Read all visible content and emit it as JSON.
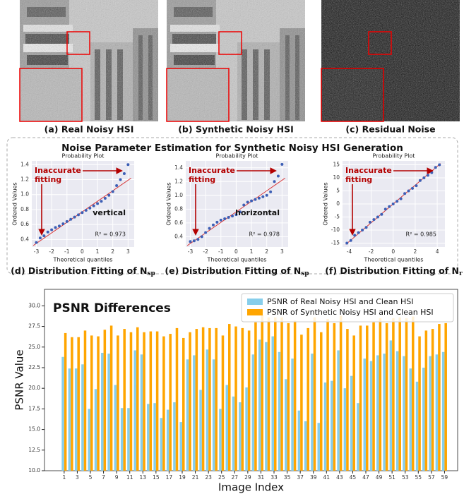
{
  "images": [
    {
      "caption": "(a) Real Noisy HSI"
    },
    {
      "caption": "(b) Synthetic Noisy HSI"
    },
    {
      "caption": "(c) Residual Noise"
    }
  ],
  "panel_title": "Noise Parameter Estimation for Synthetic Noisy HSI Generation",
  "chart_data": [
    {
      "type": "qq",
      "title": "Probability Plot",
      "x_label": "Theoretical quantiles",
      "y_label": "Ordered Values",
      "caption": "(d) Distribution Fitting of N",
      "caption_sub": "sp",
      "annotation": [
        "Inaccurate",
        "fitting"
      ],
      "orientation": "vertical",
      "r2": "R² = 0.973",
      "x": [
        -3,
        -2.75,
        -2.5,
        -2.25,
        -2,
        -1.75,
        -1.5,
        -1.25,
        -1,
        -0.75,
        -0.5,
        -0.25,
        0,
        0.25,
        0.5,
        0.75,
        1,
        1.25,
        1.5,
        1.75,
        2,
        2.25,
        2.5,
        2.75,
        3
      ],
      "values": [
        0.36,
        0.42,
        0.45,
        0.5,
        0.53,
        0.56,
        0.58,
        0.61,
        0.64,
        0.67,
        0.7,
        0.73,
        0.76,
        0.79,
        0.82,
        0.85,
        0.88,
        0.91,
        0.95,
        0.99,
        1.04,
        1.12,
        1.2,
        1.28,
        1.4
      ],
      "fit_line": {
        "x": [
          -3.2,
          3.2
        ],
        "y": [
          0.32,
          1.22
        ]
      },
      "color": "#3d5fb5",
      "line_color": "#d62728",
      "xlim": [
        -3.3,
        3.4
      ],
      "ylim": [
        0.3,
        1.45
      ],
      "xticks": [
        -3,
        -2,
        -1,
        0,
        1,
        2,
        3
      ],
      "yticks": [
        {
          "value": 0.4,
          "label": "0.4"
        },
        {
          "value": 0.6,
          "label": "0.6"
        },
        {
          "value": 0.8,
          "label": "0.8"
        },
        {
          "value": 1,
          "label": "1.0"
        },
        {
          "value": 1.2,
          "label": "1.2"
        },
        {
          "value": 1.4,
          "label": "1.4"
        }
      ],
      "grid": true
    },
    {
      "type": "qq",
      "title": "Probability Plot",
      "x_label": "Theoretical quantiles",
      "y_label": "Ordered Values",
      "caption": "(e) Distribution Fitting of N",
      "caption_sub": "sp",
      "annotation": [
        "Inaccurate",
        "fitting"
      ],
      "orientation": "horizontal",
      "r2": "R² = 0.978",
      "x": [
        -3,
        -2.75,
        -2.5,
        -2.25,
        -2,
        -1.75,
        -1.5,
        -1.25,
        -1,
        -0.75,
        -0.5,
        -0.25,
        0,
        0.25,
        0.5,
        0.75,
        1,
        1.25,
        1.5,
        1.75,
        2,
        2.25,
        2.5,
        2.75,
        3
      ],
      "values": [
        0.33,
        0.34,
        0.36,
        0.4,
        0.46,
        0.52,
        0.57,
        0.61,
        0.64,
        0.66,
        0.68,
        0.7,
        0.72,
        0.76,
        0.86,
        0.9,
        0.92,
        0.94,
        0.96,
        0.98,
        1.0,
        1.05,
        1.2,
        1.28,
        1.45
      ],
      "fit_line": {
        "x": [
          -3.2,
          3.2
        ],
        "y": [
          0.27,
          1.25
        ]
      },
      "color": "#3d5fb5",
      "line_color": "#d62728",
      "xlim": [
        -3.3,
        3.4
      ],
      "ylim": [
        0.25,
        1.5
      ],
      "xticks": [
        -3,
        -2,
        -1,
        0,
        1,
        2,
        3
      ],
      "yticks": [
        {
          "value": 0.4,
          "label": "0.4"
        },
        {
          "value": 0.6,
          "label": "0.6"
        },
        {
          "value": 0.8,
          "label": "0.8"
        },
        {
          "value": 1,
          "label": "1.0"
        },
        {
          "value": 1.2,
          "label": "1.2"
        },
        {
          "value": 1.4,
          "label": "1.4"
        }
      ],
      "grid": true
    },
    {
      "type": "qq",
      "title": "Probability Plot",
      "x_label": "Theoretical quantiles",
      "y_label": "Ordered Values",
      "caption": "(f) Distribution Fitting of N",
      "caption_sub": "r",
      "annotation": [
        "Inaccurate",
        "fitting"
      ],
      "r2": "R² = 0.985",
      "x": [
        -4.2,
        -3.85,
        -3.5,
        -3.15,
        -2.8,
        -2.45,
        -2.1,
        -1.75,
        -1.4,
        -1.05,
        -0.7,
        -0.35,
        0,
        0.35,
        0.7,
        1.05,
        1.4,
        1.75,
        2.1,
        2.45,
        2.8,
        3.15,
        3.5,
        3.85,
        4.2
      ],
      "values": [
        -15,
        -14,
        -12,
        -11,
        -10,
        -9,
        -7,
        -6,
        -5,
        -4,
        -2,
        -1,
        0,
        1,
        2,
        4,
        5,
        6,
        7,
        9,
        10,
        11,
        12,
        14,
        15
      ],
      "fit_line": {
        "x": [
          -4.3,
          4.3
        ],
        "y": [
          -15.5,
          15.5
        ]
      },
      "color": "#3d5fb5",
      "line_color": "#d62728",
      "xlim": [
        -4.6,
        4.7
      ],
      "ylim": [
        -16.5,
        16.5
      ],
      "xticks": [
        -4,
        -2,
        0,
        2,
        4
      ],
      "yticks": [
        -15,
        -10,
        -5,
        0,
        5,
        10,
        15
      ],
      "grid": true
    },
    {
      "type": "bar",
      "title": "PSNR Differences",
      "x_label": "Image Index",
      "y_label": "PSNR Value",
      "x": [
        1,
        2,
        3,
        4,
        5,
        6,
        7,
        8,
        9,
        10,
        11,
        12,
        13,
        14,
        15,
        16,
        17,
        18,
        19,
        20,
        21,
        22,
        23,
        24,
        25,
        26,
        27,
        28,
        29,
        30,
        31,
        32,
        33,
        34,
        35,
        36,
        37,
        38,
        39,
        40,
        41,
        42,
        43,
        44,
        45,
        46,
        47,
        48,
        49,
        50,
        51,
        52,
        53,
        54,
        55,
        56,
        57,
        58,
        59
      ],
      "series": [
        {
          "name": "PSNR of Real Noisy HSI and Clean HSI",
          "color": "#87ceeb",
          "values": [
            23.8,
            22.4,
            22.4,
            22.9,
            17.5,
            19.9,
            24.3,
            24.2,
            20.4,
            17.6,
            17.6,
            24.6,
            24.1,
            18.1,
            18.2,
            16.4,
            17.4,
            18.3,
            15.9,
            23.5,
            24.0,
            19.8,
            24.7,
            23.5,
            17.5,
            20.4,
            19.0,
            18.3,
            20.1,
            24.1,
            25.9,
            25.6,
            26.3,
            24.4,
            21.1,
            23.6,
            17.3,
            16.0,
            24.2,
            15.8,
            20.7,
            20.9,
            24.6,
            20.0,
            21.5,
            18.2,
            23.6,
            23.3,
            24.0,
            24.2,
            25.8,
            24.5,
            23.9,
            22.4,
            20.8,
            22.5,
            23.9,
            24.1,
            24.4
          ]
        },
        {
          "name": "PSNR of Synthetic Noisy HSI and Clean HSI",
          "color": "#ffa500",
          "values": [
            26.7,
            26.2,
            26.2,
            27.0,
            26.4,
            26.3,
            27.1,
            27.6,
            26.4,
            27.2,
            26.8,
            27.4,
            26.8,
            26.9,
            26.9,
            26.3,
            26.6,
            27.3,
            26.1,
            26.8,
            27.2,
            27.4,
            27.3,
            27.3,
            26.4,
            27.8,
            27.5,
            27.3,
            27.0,
            28.0,
            28.9,
            28.6,
            28.6,
            28.6,
            27.9,
            28.2,
            26.5,
            27.3,
            28.6,
            26.8,
            28.4,
            27.9,
            28.8,
            27.2,
            26.4,
            27.6,
            27.6,
            28.0,
            28.5,
            27.9,
            28.5,
            28.6,
            28.5,
            28.7,
            26.3,
            27.0,
            27.2,
            27.8,
            27.9
          ]
        }
      ],
      "xlim": [
        -2,
        61
      ],
      "ylim": [
        10,
        32
      ],
      "xticks": [
        1,
        3,
        5,
        7,
        9,
        11,
        13,
        15,
        17,
        19,
        21,
        23,
        25,
        27,
        29,
        31,
        33,
        35,
        37,
        39,
        41,
        43,
        45,
        47,
        49,
        51,
        53,
        55,
        57,
        59
      ],
      "yticks": [
        {
          "value": 10,
          "label": "10.0"
        },
        {
          "value": 12.5,
          "label": "12.5"
        },
        {
          "value": 15,
          "label": "15.0"
        },
        {
          "value": 17.5,
          "label": "17.5"
        },
        {
          "value": 20,
          "label": "20.0"
        },
        {
          "value": 22.5,
          "label": "22.5"
        },
        {
          "value": 25,
          "label": "25.0"
        },
        {
          "value": 27.5,
          "label": "27.5"
        },
        {
          "value": 30,
          "label": "30.0"
        }
      ],
      "legend": "upper right"
    }
  ]
}
